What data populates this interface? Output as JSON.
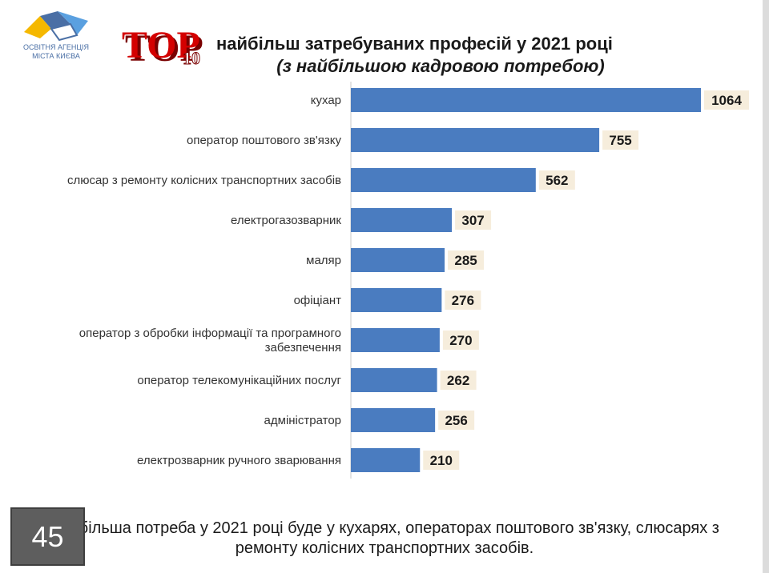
{
  "logo": {
    "line1": "ОСВІТНЯ АГЕНЦІЯ",
    "line2": "МІСТА КИЄВА"
  },
  "badge": {
    "top_text": "TOP",
    "num_text": "10"
  },
  "header": {
    "title": "найбільш затребуваних професій у 2021 році",
    "subtitle": "(з найбільшою кадровою потребою)"
  },
  "chart_data": {
    "type": "bar",
    "orientation": "horizontal",
    "categories": [
      "кухар",
      "оператор поштового зв'язку",
      "слюсар з ремонту колісних транспортних засобів",
      "електрогазозварник",
      "маляр",
      "офіціант",
      "оператор з обробки інформації та програмного забезпечення",
      "оператор телекомунікаційних послуг",
      "адміністратор",
      "електрозварник ручного зварювання"
    ],
    "values": [
      1064,
      755,
      562,
      307,
      285,
      276,
      270,
      262,
      256,
      210
    ],
    "bar_color": "#4a7cc0",
    "label_bg": "#f6eddc",
    "grid": false,
    "legend": "none"
  },
  "footer": {
    "note": "Найбільша потреба у 2021 році буде у кухарях, операторах  поштового зв'язку, слюсарях з ремонту колісних транспортних засобів.",
    "page_number": "45"
  }
}
